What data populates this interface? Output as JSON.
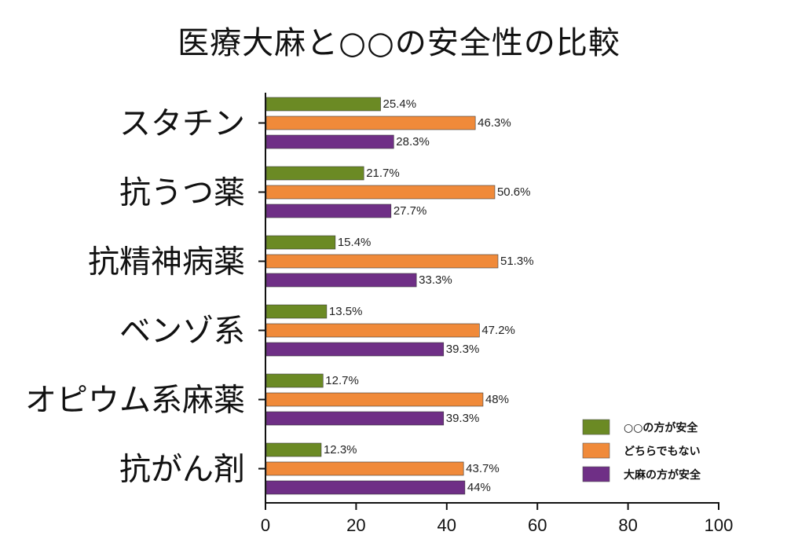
{
  "chart_data": {
    "type": "bar",
    "orientation": "horizontal",
    "title": "医療大麻と○○の安全性の比較",
    "xlabel": "",
    "ylabel": "",
    "xlim": [
      0,
      100
    ],
    "x_ticks": [
      "0",
      "20",
      "40",
      "60",
      "80",
      "100"
    ],
    "categories": [
      "スタチン",
      "抗うつ薬",
      "抗精神病薬",
      "ベンゾ系",
      "オピウム系麻薬",
      "抗がん剤"
    ],
    "series": [
      {
        "name": "○○の方が安全",
        "color": "#6b8a24",
        "values": [
          25.4,
          21.7,
          15.4,
          13.5,
          12.7,
          12.3
        ],
        "labels": [
          "25.4%",
          "21.7%",
          "15.4%",
          "13.5%",
          "12.7%",
          "12.3%"
        ]
      },
      {
        "name": "どちらでもない",
        "color": "#f08a3a",
        "values": [
          46.3,
          50.6,
          51.3,
          47.2,
          48,
          43.7
        ],
        "labels": [
          "46.3%",
          "50.6%",
          "51.3%",
          "47.2%",
          "48%",
          "43.7%"
        ]
      },
      {
        "name": "大麻の方が安全",
        "color": "#6f2f86",
        "values": [
          28.3,
          27.7,
          33.3,
          39.3,
          39.3,
          44
        ],
        "labels": [
          "28.3%",
          "27.7%",
          "33.3%",
          "39.3%",
          "39.3%",
          "44%"
        ]
      }
    ],
    "legend_position": "bottom-right",
    "grid": false
  }
}
